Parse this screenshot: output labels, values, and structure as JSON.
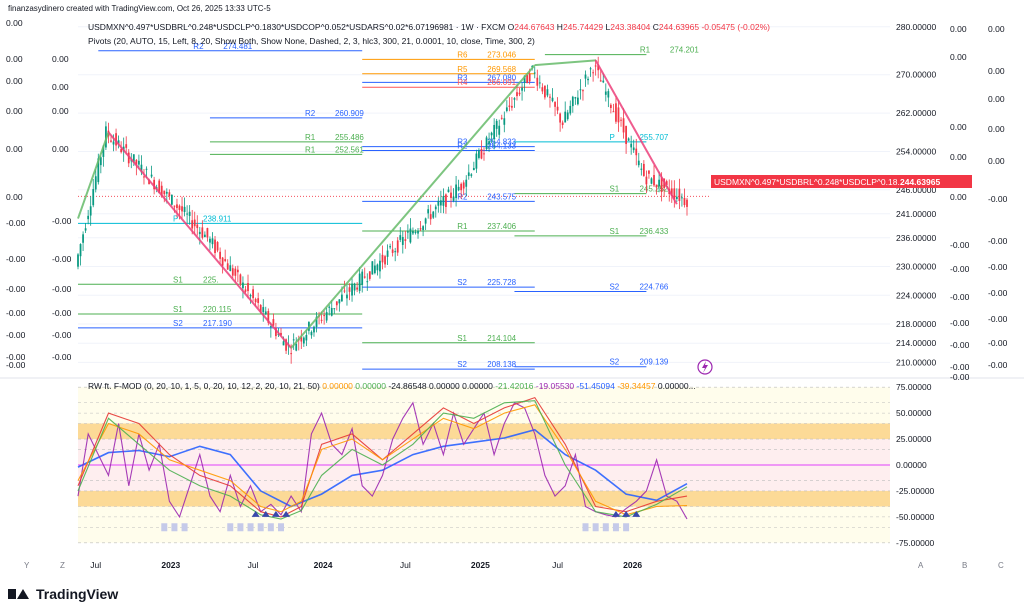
{
  "header": {
    "credit": "finanzasydinero created with TradingView.com, Oct 26, 2025 13:33 UTC-5",
    "symbol_line": "USDMXN^0.497*USDBRL^0.248*USDCLP^0.1830*USDCOP^0.052*USDARS^0.02*6.07196981 · 1W · FXCM",
    "ohlc": {
      "o": "244.67643",
      "h": "245.74429",
      "l": "243.38404",
      "c": "244.63965",
      "chg": "-0.05475 (-0.02%)"
    },
    "pivots_line": "Pivots (20, AUTO, 15, Left, 8, 20, Show Both, Show None, Dashed, 2, 3, hlc3, 300, 21, 0.0001, 10, close, Time, 300, 2)"
  },
  "price_tag": {
    "label": "USDMXN^0.497*USDBRL^0.248*USDCLP^0.18...",
    "value": "244.63965",
    "color": "#f23645"
  },
  "chart_data": [
    {
      "type": "candlestick",
      "title": "",
      "interval": "1W",
      "ylim": [
        208,
        281
      ],
      "y_ticks": [
        "280.00000",
        "270.00000",
        "262.00000",
        "254.00000",
        "246.00000",
        "241.00000",
        "236.00000",
        "230.00000",
        "224.00000",
        "218.00000",
        "214.00000",
        "210.00000"
      ],
      "x_ticks": [
        "Jul",
        "2023",
        "Jul",
        "2024",
        "Jul",
        "2025",
        "Jul",
        "2026"
      ],
      "x_ticks_bold": [
        "2023",
        "2024",
        "2025",
        "2026"
      ],
      "trend_anchors": [
        {
          "t": 0.0,
          "v": 230
        },
        {
          "t": 3.0,
          "v": 258
        },
        {
          "t": 13.0,
          "v": 236
        },
        {
          "t": 21.0,
          "v": 213
        },
        {
          "t": 30.0,
          "v": 231
        },
        {
          "t": 38.0,
          "v": 247
        },
        {
          "t": 45.0,
          "v": 271
        },
        {
          "t": 48.0,
          "v": 260
        },
        {
          "t": 51.0,
          "v": 272
        },
        {
          "t": 56.0,
          "v": 249
        },
        {
          "t": 60.0,
          "v": 244
        }
      ],
      "zigzag": [
        [
          0,
          240
        ],
        [
          3,
          258
        ],
        [
          21,
          213
        ],
        [
          45,
          272
        ],
        [
          51,
          273
        ],
        [
          59,
          243
        ]
      ],
      "pivot_levels": [
        {
          "name": "R2",
          "value": "274.481",
          "y": 275.0,
          "t0": 2,
          "t1": 28,
          "color": "#2962ff"
        },
        {
          "name": "R1",
          "value": "274.201",
          "y": 274.2,
          "t0": 46,
          "t1": 56,
          "color": "#4caf50"
        },
        {
          "name": "R6",
          "value": "273.046",
          "y": 273.2,
          "t0": 28,
          "t1": 45,
          "color": "#ff9800"
        },
        {
          "name": "R5",
          "value": "269.568",
          "y": 270.2,
          "t0": 28,
          "t1": 45,
          "color": "#ff9800"
        },
        {
          "name": "R3",
          "value": "267.080",
          "y": 268.4,
          "t0": 28,
          "t1": 45,
          "color": "#2962ff"
        },
        {
          "name": "R4",
          "value": "266.091",
          "y": 267.4,
          "t0": 28,
          "t1": 45,
          "color": "#ff5252"
        },
        {
          "name": "R2",
          "value": "260.909",
          "y": 261.0,
          "t0": 13,
          "t1": 28,
          "color": "#2962ff"
        },
        {
          "name": "R1",
          "value": "255.486",
          "y": 256.0,
          "t0": 13,
          "t1": 28,
          "color": "#4caf50"
        },
        {
          "name": "R1",
          "value": "252.561",
          "y": 253.4,
          "t0": 13,
          "t1": 28,
          "color": "#4caf50"
        },
        {
          "name": "R3",
          "value": "254.833",
          "y": 255.0,
          "t0": 28,
          "t1": 45,
          "color": "#2962ff"
        },
        {
          "name": "R2",
          "value": "254.133",
          "y": 254.2,
          "t0": 28,
          "t1": 45,
          "color": "#2962ff"
        },
        {
          "name": "P",
          "value": "255.707",
          "y": 256.0,
          "t0": 43,
          "t1": 56,
          "color": "#00bcd4"
        },
        {
          "name": "S1",
          "value": "245.252",
          "y": 245.2,
          "t0": 43,
          "t1": 56,
          "color": "#4caf50"
        },
        {
          "name": "R2",
          "value": "243.575",
          "y": 243.6,
          "t0": 28,
          "t1": 45,
          "color": "#2962ff"
        },
        {
          "name": "P",
          "value": "238.911",
          "y": 239.0,
          "t0": 0,
          "t1": 28,
          "color": "#00bcd4"
        },
        {
          "name": "R1",
          "value": "237.406",
          "y": 237.4,
          "t0": 28,
          "t1": 45,
          "color": "#4caf50"
        },
        {
          "name": "S1",
          "value": "236.433",
          "y": 236.4,
          "t0": 43,
          "t1": 56,
          "color": "#4caf50"
        },
        {
          "name": "S1",
          "value": "225.",
          "y": 226.3,
          "t0": 0,
          "t1": 28,
          "color": "#4caf50"
        },
        {
          "name": "S2",
          "value": "225.728",
          "y": 225.7,
          "t0": 28,
          "t1": 45,
          "color": "#2962ff"
        },
        {
          "name": "S2",
          "value": "224.766",
          "y": 224.8,
          "t0": 43,
          "t1": 56,
          "color": "#2962ff"
        },
        {
          "name": "S1",
          "value": "220.115",
          "y": 220.1,
          "t0": 0,
          "t1": 28,
          "color": "#4caf50"
        },
        {
          "name": "S2",
          "value": "217.190",
          "y": 217.2,
          "t0": 0,
          "t1": 28,
          "color": "#2962ff"
        },
        {
          "name": "S1",
          "value": "214.104",
          "y": 214.1,
          "t0": 28,
          "t1": 45,
          "color": "#4caf50"
        },
        {
          "name": "S2",
          "value": "209.139",
          "y": 209.1,
          "t0": 43,
          "t1": 56,
          "color": "#2962ff"
        },
        {
          "name": "S2",
          "value": "208.138",
          "y": 208.6,
          "t0": 28,
          "t1": 45,
          "color": "#2962ff"
        }
      ]
    },
    {
      "type": "line",
      "title": "RW ft. F-MOD (0, 20, 10, 1, 5, 0, 20, 10, 12, 2, 20, 10, 21, 50)",
      "header_values": [
        {
          "v": "0.00000",
          "color": "#ff9800"
        },
        {
          "v": "0.00000",
          "color": "#4caf50"
        },
        {
          "v": "-24.86548",
          "color": "#131722"
        },
        {
          "v": "0.00000",
          "color": "#131722"
        },
        {
          "v": "0.00000",
          "color": "#131722"
        },
        {
          "v": "-21.42016",
          "color": "#4caf50"
        },
        {
          "v": "-19.05530",
          "color": "#9c27b0"
        },
        {
          "v": "-51.45094",
          "color": "#2962ff"
        },
        {
          "v": "-39.34457",
          "color": "#ff9800"
        },
        {
          "v": "0.00000...",
          "color": "#131722"
        }
      ],
      "ylim": [
        -80,
        80
      ],
      "y_ticks": [
        "75.00000",
        "50.00000",
        "25.00000",
        "0.00000",
        "-25.00000",
        "-50.00000",
        "-75.00000"
      ],
      "series": [
        {
          "name": "",
          "color": "#2962ff",
          "points": [
            [
              0,
              -2
            ],
            [
              3,
              12
            ],
            [
              6,
              14
            ],
            [
              9,
              8
            ],
            [
              12,
              18
            ],
            [
              15,
              10
            ],
            [
              18,
              -25
            ],
            [
              21,
              -40
            ],
            [
              24,
              -28
            ],
            [
              27,
              -10
            ],
            [
              30,
              -5
            ],
            [
              33,
              10
            ],
            [
              36,
              18
            ],
            [
              39,
              22
            ],
            [
              42,
              26
            ],
            [
              45,
              34
            ],
            [
              48,
              10
            ],
            [
              51,
              -5
            ],
            [
              54,
              -28
            ],
            [
              57,
              -34
            ],
            [
              60,
              -18
            ]
          ]
        },
        {
          "name": "",
          "color": "#9c27b0",
          "points": [
            [
              0,
              -30
            ],
            [
              1,
              30
            ],
            [
              2,
              10
            ],
            [
              3,
              -10
            ],
            [
              4,
              40
            ],
            [
              5,
              -20
            ],
            [
              6,
              30
            ],
            [
              7,
              -5
            ],
            [
              8,
              20
            ],
            [
              9,
              -35
            ],
            [
              10,
              -50
            ],
            [
              11,
              -20
            ],
            [
              12,
              10
            ],
            [
              13,
              -30
            ],
            [
              14,
              -45
            ],
            [
              15,
              -10
            ],
            [
              16,
              -40
            ],
            [
              17,
              -20
            ],
            [
              18,
              -45
            ],
            [
              19,
              -38
            ],
            [
              20,
              -48
            ],
            [
              21,
              -30
            ],
            [
              22,
              -45
            ],
            [
              23,
              30
            ],
            [
              24,
              50
            ],
            [
              25,
              20
            ],
            [
              26,
              10
            ],
            [
              27,
              35
            ],
            [
              28,
              -20
            ],
            [
              29,
              -30
            ],
            [
              30,
              -10
            ],
            [
              31,
              25
            ],
            [
              32,
              45
            ],
            [
              33,
              60
            ],
            [
              34,
              20
            ],
            [
              35,
              40
            ],
            [
              36,
              10
            ],
            [
              37,
              50
            ],
            [
              38,
              20
            ],
            [
              39,
              35
            ],
            [
              40,
              50
            ],
            [
              41,
              10
            ],
            [
              42,
              40
            ],
            [
              43,
              60
            ],
            [
              44,
              55
            ],
            [
              45,
              30
            ],
            [
              46,
              -10
            ],
            [
              47,
              -30
            ],
            [
              48,
              -20
            ],
            [
              49,
              10
            ],
            [
              50,
              -40
            ],
            [
              51,
              -45
            ],
            [
              52,
              -48
            ],
            [
              53,
              -50
            ],
            [
              54,
              -42
            ],
            [
              55,
              -35
            ],
            [
              56,
              -25
            ],
            [
              57,
              5
            ],
            [
              58,
              -30
            ],
            [
              59,
              -35
            ],
            [
              60,
              -52
            ]
          ]
        },
        {
          "name": "",
          "color": "#e53935",
          "points": [
            [
              0,
              -20
            ],
            [
              3,
              50
            ],
            [
              6,
              40
            ],
            [
              9,
              10
            ],
            [
              12,
              -10
            ],
            [
              15,
              -20
            ],
            [
              18,
              -45
            ],
            [
              20,
              -50
            ],
            [
              22,
              -40
            ],
            [
              24,
              20
            ],
            [
              27,
              30
            ],
            [
              30,
              5
            ],
            [
              33,
              30
            ],
            [
              36,
              55
            ],
            [
              39,
              40
            ],
            [
              42,
              55
            ],
            [
              45,
              65
            ],
            [
              48,
              20
            ],
            [
              51,
              -40
            ],
            [
              54,
              -45
            ],
            [
              57,
              -35
            ],
            [
              60,
              -30
            ]
          ]
        },
        {
          "name": "",
          "color": "#ff9800",
          "points": [
            [
              0,
              -15
            ],
            [
              3,
              40
            ],
            [
              6,
              30
            ],
            [
              9,
              5
            ],
            [
              12,
              -5
            ],
            [
              15,
              -15
            ],
            [
              18,
              -40
            ],
            [
              20,
              -45
            ],
            [
              22,
              -35
            ],
            [
              24,
              15
            ],
            [
              27,
              25
            ],
            [
              30,
              5
            ],
            [
              33,
              25
            ],
            [
              36,
              45
            ],
            [
              39,
              35
            ],
            [
              42,
              50
            ],
            [
              45,
              58
            ],
            [
              48,
              15
            ],
            [
              51,
              -35
            ],
            [
              54,
              -48
            ],
            [
              57,
              -40
            ],
            [
              60,
              -39
            ]
          ]
        },
        {
          "name": "",
          "color": "#4caf50",
          "points": [
            [
              0,
              -25
            ],
            [
              3,
              45
            ],
            [
              6,
              20
            ],
            [
              9,
              -5
            ],
            [
              12,
              -20
            ],
            [
              15,
              -30
            ],
            [
              18,
              -48
            ],
            [
              20,
              -52
            ],
            [
              22,
              -44
            ],
            [
              24,
              -10
            ],
            [
              27,
              15
            ],
            [
              30,
              0
            ],
            [
              33,
              20
            ],
            [
              36,
              50
            ],
            [
              39,
              45
            ],
            [
              42,
              60
            ],
            [
              45,
              62
            ],
            [
              48,
              0
            ],
            [
              51,
              -45
            ],
            [
              54,
              -50
            ],
            [
              57,
              -38
            ],
            [
              60,
              -21
            ]
          ]
        }
      ]
    }
  ],
  "left_scales": {
    "col1": [
      "0.00",
      "0.00",
      "0.00",
      "0.00",
      "0.00",
      "0.00",
      "-0.00",
      "-0.00",
      "-0.00",
      "-0.00",
      "-0.00",
      "-0.00",
      "-0.00"
    ],
    "col2": [
      "0.00",
      "0.00",
      "0.00",
      "0.00",
      "-0.00",
      "-0.00",
      "-0.00",
      "-0.00",
      "-0.00",
      "-0.00"
    ]
  },
  "right_scales": {
    "col1": [
      "0.00",
      "0.00",
      "0.00",
      "0.00",
      "0.00",
      "-0.00",
      "-0.00",
      "-0.00",
      "-0.00",
      "-0.00",
      "-0.00",
      "-0.00"
    ],
    "col2": [
      "0.00",
      "0.00",
      "0.00",
      "0.00",
      "0.00",
      "-0.00",
      "-0.00",
      "-0.00",
      "-0.00",
      "-0.00",
      "-0.00",
      "-0.00"
    ]
  },
  "bottom_letters": {
    "left": [
      "Y",
      "Z"
    ],
    "right": [
      "A",
      "B",
      "C"
    ]
  },
  "branding": {
    "credit_logo": "TradingView"
  }
}
